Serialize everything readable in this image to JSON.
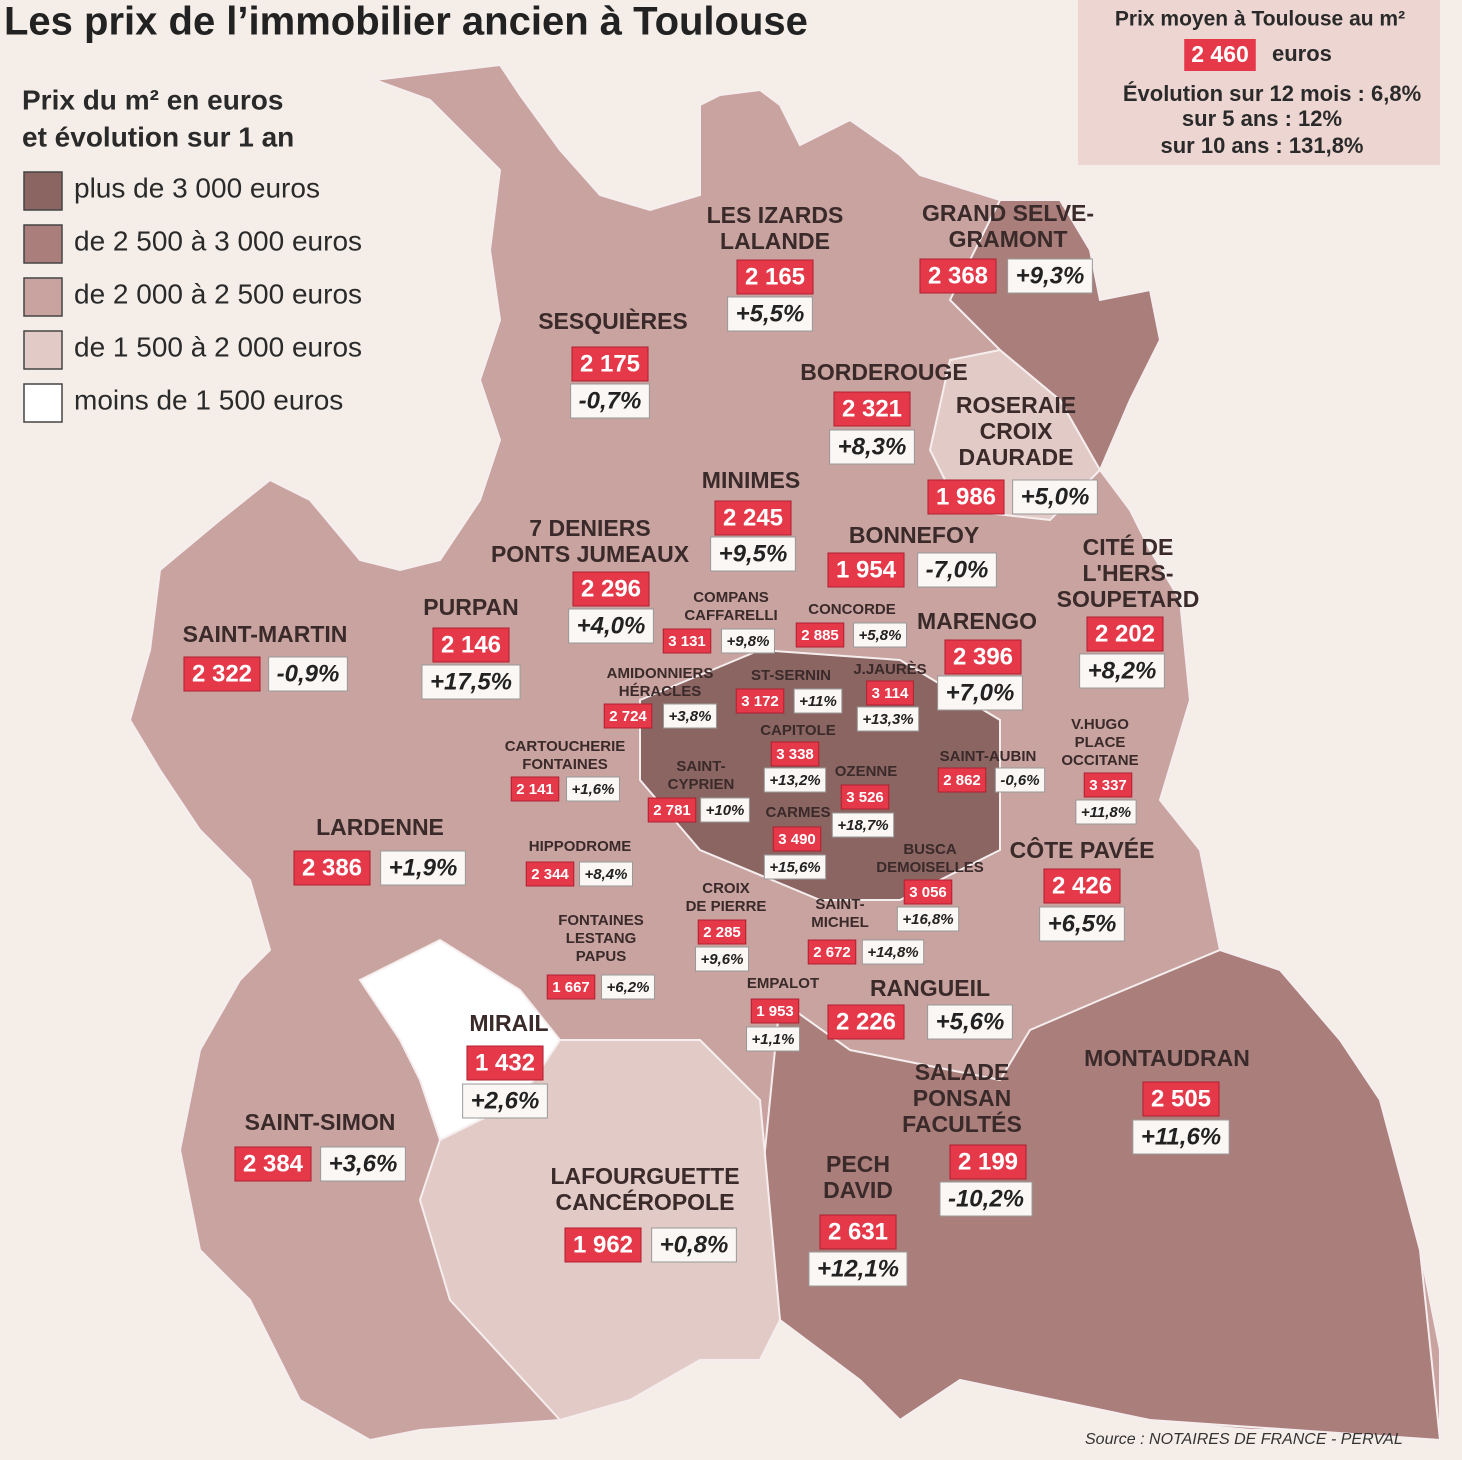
{
  "title": "Les prix de l’immobilier ancien à Toulouse",
  "legend": {
    "title": [
      "Prix du m² en euros",
      "et évolution sur 1 an"
    ],
    "items": [
      {
        "label": "plus de 3 000 euros",
        "color": "#8a6562"
      },
      {
        "label": "de 2 500 à 3 000 euros",
        "color": "#a97e7b"
      },
      {
        "label": "de 2 000 à 2 500 euros",
        "color": "#c8a3a0"
      },
      {
        "label": "de 1 500 à 2 000 euros",
        "color": "#e2cac6"
      },
      {
        "label": "moins de 1 500 euros",
        "color": "#ffffff"
      }
    ]
  },
  "summary": {
    "title": "Prix moyen à Toulouse au m²",
    "price": "2 460",
    "unit": "euros",
    "lines": [
      "Évolution sur 12 mois : 6,8%",
      "sur 5 ans : 12%",
      "sur 10 ans : 131,8%"
    ]
  },
  "districts": [
    {
      "name": [
        "LES IZARDS",
        "LALANDE"
      ],
      "price": "2 165",
      "change": "+5,5%"
    },
    {
      "name": [
        "GRAND SELVE-",
        "GRAMONT"
      ],
      "price": "2 368",
      "change": "+9,3%"
    },
    {
      "name": [
        "SESQUIÈRES"
      ],
      "price": "2 175",
      "change": "-0,7%"
    },
    {
      "name": [
        "BORDEROUGE"
      ],
      "price": "2 321",
      "change": "+8,3%"
    },
    {
      "name": [
        "ROSERAIE",
        "CROIX",
        "DAURADE"
      ],
      "price": "1 986",
      "change": "+5,0%"
    },
    {
      "name": [
        "MINIMES"
      ],
      "price": "2 245",
      "change": "+9,5%"
    },
    {
      "name": [
        "7 DENIERS",
        "PONTS JUMEAUX"
      ],
      "price": "2 296",
      "change": "+4,0%"
    },
    {
      "name": [
        "BONNEFOY"
      ],
      "price": "1 954",
      "change": "-7,0%"
    },
    {
      "name": [
        "CITÉ DE",
        "L'HERS-",
        "SOUPETARD"
      ],
      "price": "2 202",
      "change": "+8,2%"
    },
    {
      "name": [
        "PURPAN"
      ],
      "price": "2 146",
      "change": "+17,5%"
    },
    {
      "name": [
        "SAINT-MARTIN"
      ],
      "price": "2 322",
      "change": "-0,9%"
    },
    {
      "name": [
        "COMPANS",
        "CAFFARELLI"
      ],
      "price": "3 131",
      "change": "+9,8%"
    },
    {
      "name": [
        "CONCORDE"
      ],
      "price": "2 885",
      "change": "+5,8%"
    },
    {
      "name": [
        "MARENGO"
      ],
      "price": "2 396",
      "change": "+7,0%"
    },
    {
      "name": [
        "AMIDONNIERS",
        "HÉRACLES"
      ],
      "price": "2 724",
      "change": "+3,8%"
    },
    {
      "name": [
        "ST-SERNIN"
      ],
      "price": "3 172",
      "change": "+11%"
    },
    {
      "name": [
        "J.JAURÈS"
      ],
      "price": "3 114",
      "change": "+13,3%"
    },
    {
      "name": [
        "V.HUGO",
        "PLACE",
        "OCCITANE"
      ],
      "price": "3 337",
      "change": "+11,8%"
    },
    {
      "name": [
        "CAPITOLE"
      ],
      "price": "3 338",
      "change": "+13,2%"
    },
    {
      "name": [
        "SAINT-AUBIN"
      ],
      "price": "2 862",
      "change": "-0,6%"
    },
    {
      "name": [
        "CARTOUCHERIE",
        "FONTAINES"
      ],
      "price": "2 141",
      "change": "+1,6%"
    },
    {
      "name": [
        "SAINT-",
        "CYPRIEN"
      ],
      "price": "2 781",
      "change": "+10%"
    },
    {
      "name": [
        "OZENNE"
      ],
      "price": "3 526",
      "change": "+18,7%"
    },
    {
      "name": [
        "CARMES"
      ],
      "price": "3 490",
      "change": "+15,6%"
    },
    {
      "name": [
        "LARDENNE"
      ],
      "price": "2 386",
      "change": "+1,9%"
    },
    {
      "name": [
        "HIPPODROME"
      ],
      "price": "2 344",
      "change": "+8,4%"
    },
    {
      "name": [
        "BUSCA",
        "DEMOISELLES"
      ],
      "price": "3 056",
      "change": "+16,8%"
    },
    {
      "name": [
        "CÔTE PAVÉE"
      ],
      "price": "2 426",
      "change": "+6,5%"
    },
    {
      "name": [
        "CROIX",
        "DE PIERRE"
      ],
      "price": "2 285",
      "change": "+9,6%"
    },
    {
      "name": [
        "SAINT-",
        "MICHEL"
      ],
      "price": "2 672",
      "change": "+14,8%"
    },
    {
      "name": [
        "FONTAINES",
        "LESTANG",
        "PAPUS"
      ],
      "price": "1 667",
      "change": "+6,2%"
    },
    {
      "name": [
        "EMPALOT"
      ],
      "price": "1 953",
      "change": "+1,1%"
    },
    {
      "name": [
        "RANGUEIL"
      ],
      "price": "2 226",
      "change": "+5,6%"
    },
    {
      "name": [
        "MIRAIL"
      ],
      "price": "1 432",
      "change": "+2,6%"
    },
    {
      "name": [
        "MONTAUDRAN"
      ],
      "price": "2 505",
      "change": "+11,6%"
    },
    {
      "name": [
        "SALADE",
        "PONSAN",
        "FACULTÉS"
      ],
      "price": "2 199",
      "change": "-10,2%"
    },
    {
      "name": [
        "SAINT-SIMON"
      ],
      "price": "2 384",
      "change": "+3,6%"
    },
    {
      "name": [
        "PECH",
        "DAVID"
      ],
      "price": "2 631",
      "change": "+12,1%"
    },
    {
      "name": [
        "LAFOURGUETTE",
        "CANCÉROPOLE"
      ],
      "price": "1 962",
      "change": "+0,8%"
    }
  ],
  "source": "Source : NOTAIRES DE FRANCE - PERVAL"
}
